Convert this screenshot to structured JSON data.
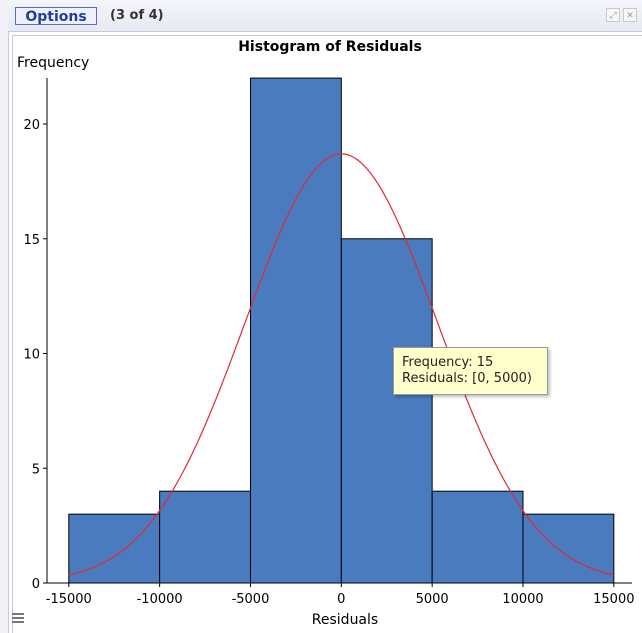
{
  "toolbar": {
    "options_label": "Options",
    "page_indicator": "(3 of 4)",
    "expand_icon": "expand-icon",
    "close_icon": "close-icon"
  },
  "chart_data": {
    "type": "bar",
    "title": "Histogram of Residuals",
    "xlabel": "Residuals",
    "ylabel": "Frequency",
    "bins": [
      {
        "from": -15000,
        "to": -10000,
        "value": 3
      },
      {
        "from": -10000,
        "to": -5000,
        "value": 4
      },
      {
        "from": -5000,
        "to": 0,
        "value": 22
      },
      {
        "from": 0,
        "to": 5000,
        "value": 15
      },
      {
        "from": 5000,
        "to": 10000,
        "value": 4
      },
      {
        "from": 10000,
        "to": 15000,
        "value": 3
      }
    ],
    "xlim": [
      -15000,
      15000
    ],
    "ylim": [
      0,
      22
    ],
    "xticks": [
      "-15000",
      "-10000",
      "-5000",
      "0",
      "5000",
      "10000",
      "15000"
    ],
    "yticks": [
      "0",
      "5",
      "10",
      "15",
      "20"
    ],
    "normal_curve": {
      "color": "#dd2a3a",
      "mean": 0,
      "peak": 18.7,
      "sigma": 5300
    },
    "bar_color": "#4a7bbf",
    "grid": false,
    "tooltip": {
      "line1": "Frequency: 15",
      "line2": "Residuals: [0, 5000)"
    }
  }
}
